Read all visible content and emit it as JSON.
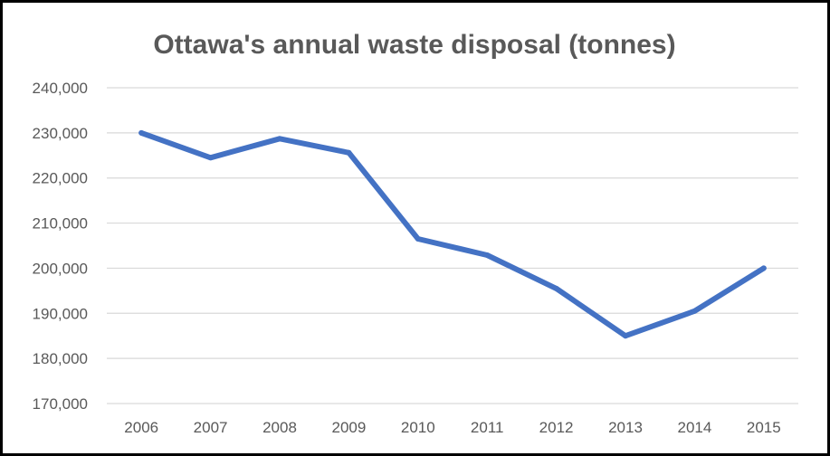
{
  "chart_data": {
    "type": "line",
    "title": "Ottawa's annual waste disposal (tonnes)",
    "xlabel": "",
    "ylabel": "",
    "categories": [
      "2006",
      "2007",
      "2008",
      "2009",
      "2010",
      "2011",
      "2012",
      "2013",
      "2014",
      "2015"
    ],
    "series": [
      {
        "values": [
          230000,
          224500,
          228700,
          225600,
          206500,
          202900,
          195500,
          185000,
          190500,
          200000
        ]
      }
    ],
    "ylim": [
      170000,
      240000
    ],
    "yticks": [
      240000,
      230000,
      220000,
      210000,
      200000,
      190000,
      180000,
      170000
    ],
    "ytick_labels": [
      "240,000",
      "230,000",
      "220,000",
      "210,000",
      "200,000",
      "190,000",
      "180,000",
      "170,000"
    ],
    "grid": true,
    "legend": "none",
    "colors": {
      "series": "#4472c4",
      "gridline": "#d9d9d9",
      "text": "#595959",
      "border": "#000000"
    }
  }
}
